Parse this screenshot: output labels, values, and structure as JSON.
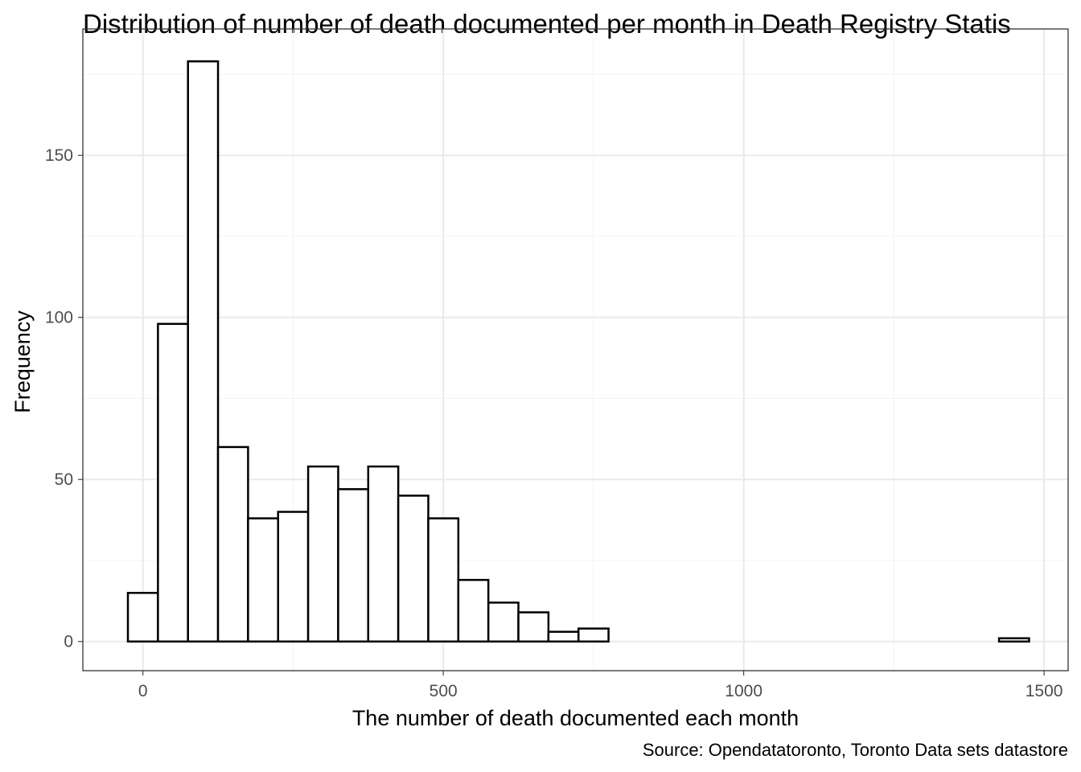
{
  "chart_data": {
    "type": "bar",
    "title": "Distribution of number of death documented per month in Death Registry Statis",
    "xlabel": "The number of death documented each month",
    "ylabel": "Frequency",
    "caption": "Source: Opendatatoronto, Toronto Data sets datastore",
    "xlim": [
      -100,
      1540
    ],
    "ylim": [
      -9,
      189
    ],
    "grid": true,
    "legend": "none",
    "bin_width": 50,
    "x_ticks": [
      0,
      500,
      1000,
      1500
    ],
    "y_ticks": [
      0,
      50,
      100,
      150
    ],
    "x_tick_labels": [
      "0",
      "500",
      "1000",
      "1500"
    ],
    "y_tick_labels": [
      "0",
      "50",
      "100",
      "150"
    ],
    "bins": [
      {
        "x": 0,
        "count": 15
      },
      {
        "x": 50,
        "count": 98
      },
      {
        "x": 100,
        "count": 179
      },
      {
        "x": 150,
        "count": 60
      },
      {
        "x": 200,
        "count": 38
      },
      {
        "x": 250,
        "count": 40
      },
      {
        "x": 300,
        "count": 54
      },
      {
        "x": 350,
        "count": 47
      },
      {
        "x": 400,
        "count": 54
      },
      {
        "x": 450,
        "count": 45
      },
      {
        "x": 500,
        "count": 38
      },
      {
        "x": 550,
        "count": 19
      },
      {
        "x": 600,
        "count": 12
      },
      {
        "x": 650,
        "count": 9
      },
      {
        "x": 700,
        "count": 3
      },
      {
        "x": 750,
        "count": 4
      },
      {
        "x": 800,
        "count": 0
      },
      {
        "x": 850,
        "count": 0
      },
      {
        "x": 900,
        "count": 0
      },
      {
        "x": 950,
        "count": 0
      },
      {
        "x": 1000,
        "count": 0
      },
      {
        "x": 1050,
        "count": 0
      },
      {
        "x": 1100,
        "count": 0
      },
      {
        "x": 1150,
        "count": 0
      },
      {
        "x": 1200,
        "count": 0
      },
      {
        "x": 1250,
        "count": 0
      },
      {
        "x": 1300,
        "count": 0
      },
      {
        "x": 1350,
        "count": 0
      },
      {
        "x": 1400,
        "count": 0
      },
      {
        "x": 1450,
        "count": 1
      }
    ],
    "colors": {
      "bar_fill": "#ffffff",
      "bar_outline": "#000000"
    }
  }
}
